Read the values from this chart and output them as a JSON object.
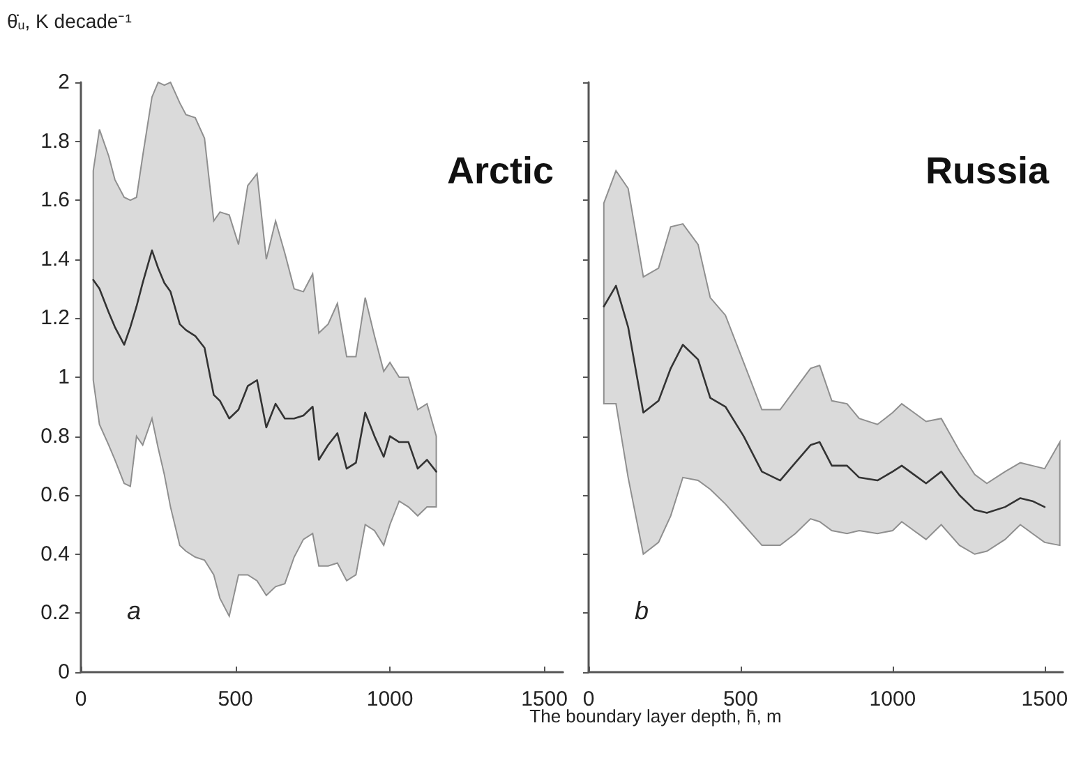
{
  "chart_data": [
    {
      "type": "line",
      "ylabel": "θ̇$_{u}$, K decade⁻¹",
      "annotations": [
        "Arctic",
        "a"
      ],
      "xlim": [
        0,
        1560
      ],
      "ylim": [
        0,
        2
      ],
      "xticks": [
        0,
        500,
        1000,
        1500
      ],
      "yticks": [
        0,
        0.2,
        0.4,
        0.6,
        0.8,
        1,
        1.2,
        1.4,
        1.6,
        1.8,
        2
      ],
      "grid": false,
      "marker": "none",
      "line_style": "solid",
      "x": [
        40,
        60,
        90,
        110,
        140,
        160,
        180,
        200,
        230,
        250,
        270,
        290,
        320,
        340,
        370,
        400,
        430,
        450,
        480,
        510,
        540,
        570,
        600,
        630,
        660,
        690,
        720,
        750,
        770,
        800,
        830,
        860,
        890,
        920,
        950,
        980,
        1000,
        1030,
        1060,
        1090,
        1120,
        1150
      ],
      "series": [
        {
          "color": "#333333",
          "values": [
            1.33,
            1.3,
            1.22,
            1.17,
            1.11,
            1.17,
            1.24,
            1.32,
            1.43,
            1.37,
            1.32,
            1.29,
            1.18,
            1.16,
            1.14,
            1.1,
            0.94,
            0.92,
            0.86,
            0.89,
            0.97,
            0.99,
            0.83,
            0.91,
            0.86,
            0.86,
            0.87,
            0.9,
            0.72,
            0.77,
            0.81,
            0.69,
            0.71,
            0.88,
            0.8,
            0.73,
            0.8,
            0.78,
            0.78,
            0.69,
            0.72,
            0.68
          ],
          "upper": [
            1.7,
            1.84,
            1.75,
            1.67,
            1.61,
            1.6,
            1.61,
            1.75,
            1.95,
            2.0,
            1.99,
            2.0,
            1.93,
            1.89,
            1.88,
            1.81,
            1.53,
            1.56,
            1.55,
            1.45,
            1.65,
            1.69,
            1.4,
            1.53,
            1.42,
            1.3,
            1.29,
            1.35,
            1.15,
            1.18,
            1.25,
            1.07,
            1.07,
            1.27,
            1.14,
            1.02,
            1.05,
            1.0,
            1.0,
            0.89,
            0.91,
            0.8
          ],
          "lower": [
            0.99,
            0.84,
            0.77,
            0.72,
            0.64,
            0.63,
            0.8,
            0.77,
            0.86,
            0.76,
            0.67,
            0.56,
            0.43,
            0.41,
            0.39,
            0.38,
            0.33,
            0.25,
            0.19,
            0.33,
            0.33,
            0.31,
            0.26,
            0.29,
            0.3,
            0.39,
            0.45,
            0.47,
            0.36,
            0.36,
            0.37,
            0.31,
            0.33,
            0.5,
            0.48,
            0.43,
            0.5,
            0.58,
            0.56,
            0.53,
            0.56,
            0.56
          ]
        }
      ]
    },
    {
      "type": "line",
      "xlabel": "The boundary layer depth, h̄, m",
      "annotations": [
        "Russia",
        "b"
      ],
      "xlim": [
        0,
        1560
      ],
      "ylim": [
        0,
        2
      ],
      "xticks": [
        0,
        500,
        1000,
        1500
      ],
      "yticks": [
        0,
        0.2,
        0.4,
        0.6,
        0.8,
        1,
        1.2,
        1.4,
        1.6,
        1.8,
        2
      ],
      "tick_labels": "x",
      "grid": false,
      "marker": "none",
      "line_style": "solid",
      "x": [
        50,
        90,
        130,
        180,
        230,
        270,
        310,
        360,
        400,
        450,
        510,
        570,
        630,
        680,
        730,
        760,
        800,
        850,
        890,
        950,
        1000,
        1030,
        1070,
        1110,
        1160,
        1220,
        1270,
        1310,
        1370,
        1420,
        1460,
        1500,
        1550
      ],
      "series": [
        {
          "color": "#333333",
          "values": [
            1.24,
            1.31,
            1.17,
            0.88,
            0.92,
            1.03,
            1.11,
            1.06,
            0.93,
            0.9,
            0.8,
            0.68,
            0.65,
            0.71,
            0.77,
            0.78,
            0.7,
            0.7,
            0.66,
            0.65,
            0.68,
            0.7,
            0.67,
            0.64,
            0.68,
            0.6,
            0.55,
            0.54,
            0.56,
            0.59,
            0.58,
            0.56,
            null
          ],
          "upper": [
            1.59,
            1.7,
            1.64,
            1.34,
            1.37,
            1.51,
            1.52,
            1.45,
            1.27,
            1.21,
            1.05,
            0.89,
            0.89,
            0.96,
            1.03,
            1.04,
            0.92,
            0.91,
            0.86,
            0.84,
            0.88,
            0.91,
            0.88,
            0.85,
            0.86,
            0.75,
            0.67,
            0.64,
            0.68,
            0.71,
            0.7,
            0.69,
            0.78
          ],
          "lower": [
            0.91,
            0.91,
            0.66,
            0.4,
            0.44,
            0.53,
            0.66,
            0.65,
            0.62,
            0.57,
            0.5,
            0.43,
            0.43,
            0.47,
            0.52,
            0.51,
            0.48,
            0.47,
            0.48,
            0.47,
            0.48,
            0.51,
            0.48,
            0.45,
            0.5,
            0.43,
            0.4,
            0.41,
            0.45,
            0.5,
            0.47,
            0.44,
            0.43
          ]
        }
      ]
    }
  ]
}
